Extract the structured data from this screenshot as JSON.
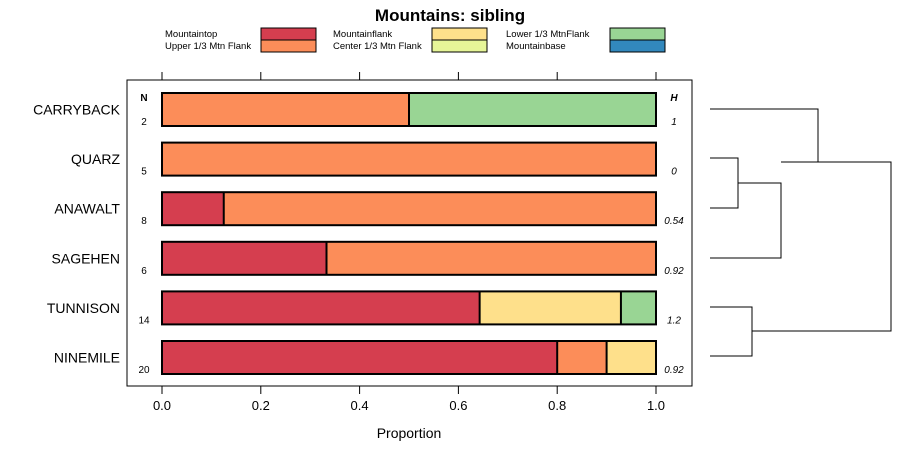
{
  "chart_data": {
    "type": "bar",
    "orientation": "horizontal",
    "stacked": true,
    "title": "Mountains: sibling",
    "xlabel": "Proportion",
    "xlim": [
      0,
      1
    ],
    "xticks": [
      "0.0",
      "0.2",
      "0.4",
      "0.6",
      "0.8",
      "1.0"
    ],
    "n_header": "N",
    "h_header": "H",
    "legend": [
      {
        "label": "Mountaintop",
        "color": "#d53e4f"
      },
      {
        "label": "Upper 1/3 Mtn Flank",
        "color": "#fc8d59"
      },
      {
        "label": "Mountainflank",
        "color": "#fee08b"
      },
      {
        "label": "Center 1/3 Mtn Flank",
        "color": "#e6f598"
      },
      {
        "label": "Lower 1/3 MtnFlank",
        "color": "#99d594"
      },
      {
        "label": "Mountainbase",
        "color": "#3288bd"
      }
    ],
    "categories": [
      "CARRYBACK",
      "QUARZ",
      "ANAWALT",
      "SAGEHEN",
      "TUNNISON",
      "NINEMILE"
    ],
    "n": [
      "2",
      "5",
      "8",
      "6",
      "14",
      "20"
    ],
    "h": [
      "1",
      "0",
      "0.54",
      "0.92",
      "1.2",
      "0.92"
    ],
    "series": [
      {
        "name": "Mountaintop",
        "values": [
          0,
          0,
          0.125,
          0.333,
          0.643,
          0.8
        ]
      },
      {
        "name": "Upper 1/3 Mtn Flank",
        "values": [
          0.5,
          1,
          0.875,
          0.667,
          0,
          0.1
        ]
      },
      {
        "name": "Mountainflank",
        "values": [
          0,
          0,
          0,
          0,
          0.286,
          0.1
        ]
      },
      {
        "name": "Center 1/3 Mtn Flank",
        "values": [
          0,
          0,
          0,
          0,
          0,
          0
        ]
      },
      {
        "name": "Lower 1/3 MtnFlank",
        "values": [
          0.5,
          0,
          0,
          0,
          0.071,
          0
        ]
      },
      {
        "name": "Mountainbase",
        "values": [
          0,
          0,
          0,
          0,
          0,
          0
        ]
      }
    ],
    "dendrogram": "hierarchical clustering of sites shown to the right of the bars"
  }
}
